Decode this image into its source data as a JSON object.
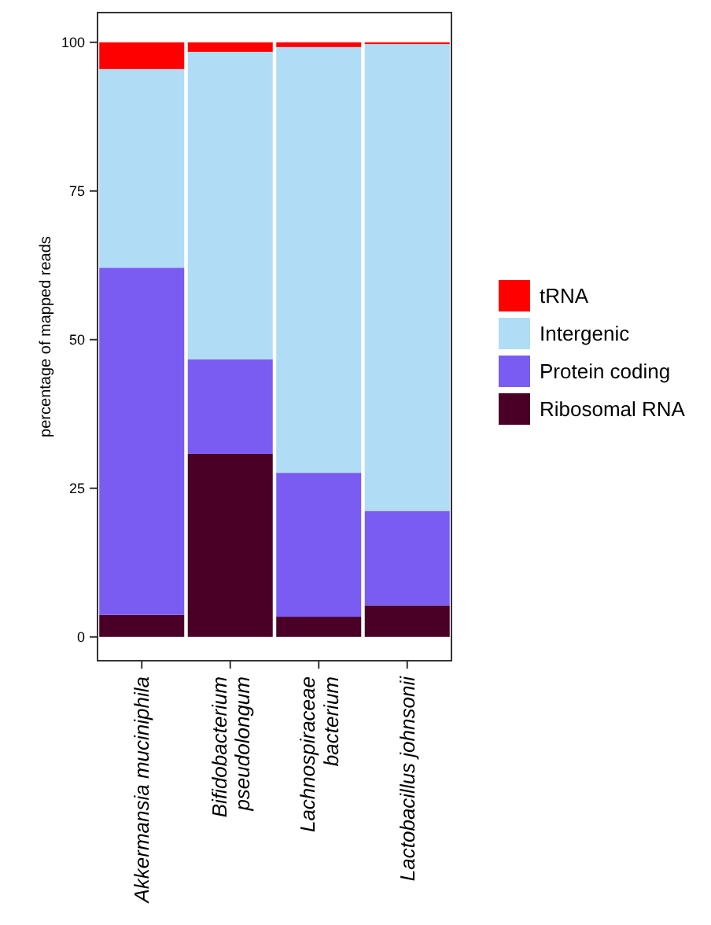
{
  "chart_data": {
    "type": "bar",
    "stacked": true,
    "ylabel": "percentage of mapped reads",
    "categories": [
      "Akkermansia muciniphila",
      "Bifidobacterium pseudolongum",
      "Lachnospiraceae bacterium",
      "Lactobacillus johnsonii"
    ],
    "series": [
      {
        "name": "Ribosomal RNA",
        "color": "#4a0026",
        "values": [
          3.7,
          30.8,
          3.4,
          5.3
        ]
      },
      {
        "name": "Protein coding",
        "color": "#7b5cf2",
        "values": [
          58.4,
          15.9,
          24.2,
          15.9
        ]
      },
      {
        "name": "Intergenic",
        "color": "#b0dcf5",
        "values": [
          33.4,
          51.7,
          71.6,
          78.5
        ]
      },
      {
        "name": "tRNA",
        "color": "#ff0000",
        "values": [
          4.5,
          1.6,
          0.8,
          0.3
        ]
      }
    ],
    "ylim": [
      -4,
      105
    ],
    "yticks": [
      0,
      25,
      50,
      75,
      100
    ],
    "grid": false,
    "legend": "right"
  }
}
